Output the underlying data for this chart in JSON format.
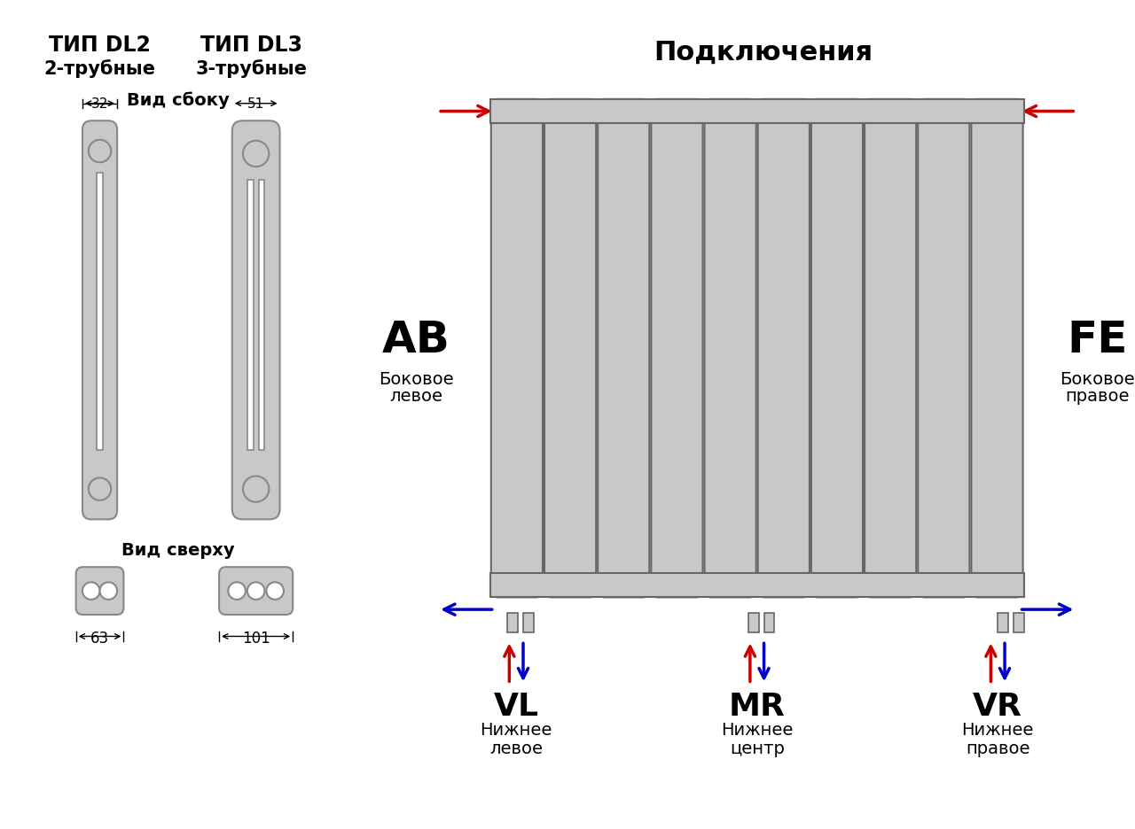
{
  "bg_color": "#ffffff",
  "radiator_color": "#c8c8c8",
  "radiator_outline": "#888888",
  "section_outline": "#666666",
  "arrow_red": "#cc0000",
  "arrow_blue": "#0000cc",
  "text_color": "#000000",
  "title_podkl": "Подключения",
  "label_tip_dl2": "ТИП DL2",
  "label_dl2_sub": "2-трубные",
  "label_tip_dl3": "ТИП DL3",
  "label_dl3_sub": "3-трубные",
  "label_vid_sboku": "Вид сбоку",
  "label_vid_sverhu": "Вид сверху",
  "label_32": "32",
  "label_51": "51",
  "label_63": "63",
  "label_101": "101",
  "label_AB": "AB",
  "label_AB_sub1": "Боковое",
  "label_AB_sub2": "левое",
  "label_FE": "FE",
  "label_FE_sub1": "Боковое",
  "label_FE_sub2": "правое",
  "label_VL": "VL",
  "label_VL_sub1": "Нижнее",
  "label_VL_sub2": "левое",
  "label_MR": "MR",
  "label_MR_sub1": "Нижнее",
  "label_MR_sub2": "центр",
  "label_VR": "VR",
  "label_VR_sub1": "Нижнее",
  "label_VR_sub2": "правое",
  "num_sections": 10
}
